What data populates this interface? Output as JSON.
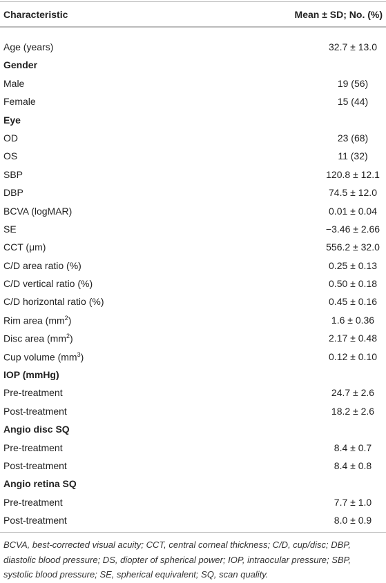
{
  "table": {
    "header": [
      "Characteristic",
      "Mean ± SD; No. (%)"
    ],
    "rows": [
      {
        "label": "Age (years)",
        "value": "32.7 ± 13.0"
      },
      {
        "label": "Gender"
      },
      {
        "label": "Male",
        "value": "19 (56)"
      },
      {
        "label": "Female",
        "value": "15 (44)"
      },
      {
        "label": "Eye"
      },
      {
        "label": "OD",
        "value": "23 (68)"
      },
      {
        "label": "OS",
        "value": "11 (32)"
      },
      {
        "label": "SBP",
        "value": "120.8 ± 12.1"
      },
      {
        "label": "DBP",
        "value": "74.5 ± 12.0"
      },
      {
        "label": "BCVA (logMAR)",
        "value": "0.01 ± 0.04"
      },
      {
        "label": "SE",
        "value": "−3.46 ± 2.66"
      },
      {
        "label": "CCT (μm)",
        "value": "556.2 ± 32.0"
      },
      {
        "label": "C/D area ratio (%)",
        "value": "0.25 ± 0.13"
      },
      {
        "label": "C/D vertical ratio (%)",
        "value": "0.50 ± 0.18"
      },
      {
        "label": "C/D horizontal ratio (%)",
        "value": "0.45 ± 0.16"
      },
      {
        "label": [
          "Rim area (mm",
          "2",
          ")"
        ],
        "value": "1.6 ± 0.36"
      },
      {
        "label": [
          "Disc area (mm",
          "2",
          ")"
        ],
        "value": "2.17 ± 0.48"
      },
      {
        "label": [
          "Cup volume (mm",
          "3",
          ")"
        ],
        "value": "0.12 ± 0.10"
      },
      {
        "label": "IOP (mmHg)"
      },
      {
        "label": "Pre-treatment",
        "value": "24.7 ± 2.6"
      },
      {
        "label": "Post-treatment",
        "value": "18.2 ± 2.6"
      },
      {
        "label": "Angio disc SQ"
      },
      {
        "label": "Pre-treatment",
        "value": "8.4 ± 0.7"
      },
      {
        "label": "Post-treatment",
        "value": "8.4 ± 0.8"
      },
      {
        "label": "Angio retina SQ"
      },
      {
        "label": "Pre-treatment",
        "value": "7.7 ± 1.0"
      },
      {
        "label": "Post-treatment",
        "value": "8.0 ± 0.9"
      }
    ]
  },
  "footnote": "BCVA, best-corrected visual acuity; CCT, central corneal thickness; C/D, cup/disc; DBP, diastolic blood pressure; DS, diopter of spherical power; IOP, intraocular pressure; SBP, systolic blood pressure; SE, spherical equivalent; SQ, scan quality."
}
